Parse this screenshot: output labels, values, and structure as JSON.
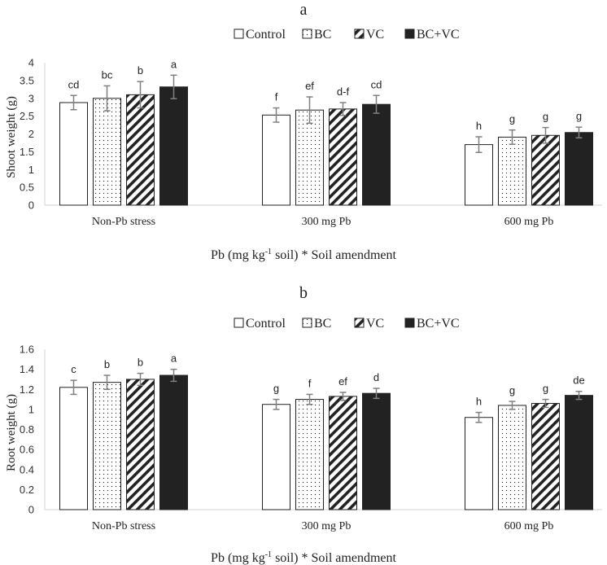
{
  "legend_labels": [
    "Control",
    "BC",
    "VC",
    "BC+VC"
  ],
  "chart_data": [
    {
      "type": "bar",
      "panel_letter": "a",
      "title": "",
      "xlabel": "Pb (mg kg-1 soil) * Soil amendment",
      "xlabel_parts": {
        "before": "Pb (mg kg",
        "sup": "-1",
        "after": " soil) * Soil amendment"
      },
      "ylabel": "Shoot weight (g)",
      "ylim": [
        0,
        4
      ],
      "yticks": [
        "0",
        "0.5",
        "1",
        "1.5",
        "2",
        "2.5",
        "3",
        "3.5",
        "4"
      ],
      "grid": false,
      "legend_position": "top",
      "categories": [
        "Non-Pb stress",
        "300 mg Pb",
        "600 mg Pb"
      ],
      "series": [
        {
          "name": "Control",
          "values": [
            2.88,
            2.53,
            1.7
          ],
          "errors": [
            0.2,
            0.2,
            0.22
          ],
          "labels": [
            "cd",
            "f",
            "h"
          ]
        },
        {
          "name": "BC",
          "values": [
            3.0,
            2.67,
            1.91
          ],
          "errors": [
            0.35,
            0.37,
            0.2
          ],
          "labels": [
            "bc",
            "ef",
            "g"
          ]
        },
        {
          "name": "VC",
          "values": [
            3.1,
            2.7,
            1.96
          ],
          "errors": [
            0.37,
            0.18,
            0.22
          ],
          "labels": [
            "b",
            "d-f",
            "g"
          ]
        },
        {
          "name": "BC+VC",
          "values": [
            3.32,
            2.83,
            2.04
          ],
          "errors": [
            0.33,
            0.25,
            0.15
          ],
          "labels": [
            "a",
            "cd",
            "g"
          ]
        }
      ]
    },
    {
      "type": "bar",
      "panel_letter": "b",
      "title": "",
      "xlabel": "Pb (mg kg-1 soil) * Soil amendment",
      "xlabel_parts": {
        "before": "Pb (mg kg",
        "sup": "-1",
        "after": " soil) * Soil amendment"
      },
      "ylabel": "Root weight (g)",
      "ylim": [
        0,
        1.6
      ],
      "yticks": [
        "0",
        "0.2",
        "0.4",
        "0.6",
        "0.8",
        "1",
        "1.2",
        "1.4",
        "1.6"
      ],
      "grid": false,
      "legend_position": "top",
      "categories": [
        "Non-Pb stress",
        "300 mg Pb",
        "600 mg Pb"
      ],
      "series": [
        {
          "name": "Control",
          "values": [
            1.22,
            1.05,
            0.92
          ],
          "errors": [
            0.07,
            0.05,
            0.05
          ],
          "labels": [
            "c",
            "g",
            "h"
          ]
        },
        {
          "name": "BC",
          "values": [
            1.27,
            1.1,
            1.04
          ],
          "errors": [
            0.07,
            0.05,
            0.04
          ],
          "labels": [
            "b",
            "f",
            "g"
          ]
        },
        {
          "name": "VC",
          "values": [
            1.3,
            1.13,
            1.06
          ],
          "errors": [
            0.06,
            0.04,
            0.04
          ],
          "labels": [
            "b",
            "ef",
            "g"
          ]
        },
        {
          "name": "BC+VC",
          "values": [
            1.34,
            1.16,
            1.14
          ],
          "errors": [
            0.06,
            0.05,
            0.04
          ],
          "labels": [
            "a",
            "d",
            "de"
          ]
        }
      ]
    }
  ]
}
